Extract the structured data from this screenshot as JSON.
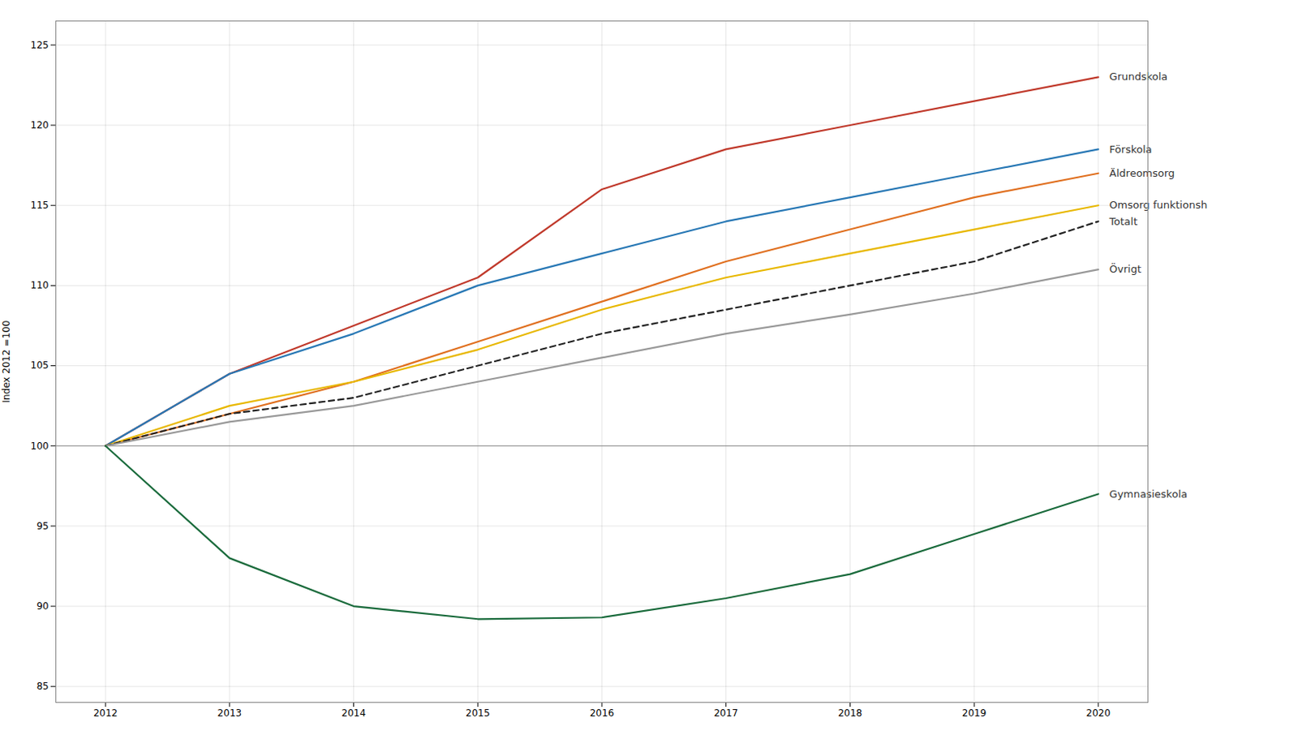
{
  "chart_data": {
    "type": "line",
    "y_label": "Index 2012 =100",
    "x": [
      2012,
      2013,
      2014,
      2015,
      2016,
      2017,
      2018,
      2019,
      2020
    ],
    "series": [
      {
        "name": "Grundskola",
        "color": "#c0392b",
        "line_style": "solid",
        "values": [
          100,
          104.5,
          107.5,
          110.5,
          116.0,
          118.5,
          120.0,
          121.5,
          123.0
        ]
      },
      {
        "name": "Förskola",
        "color": "#2878b5",
        "line_style": "solid",
        "values": [
          100,
          104.5,
          107.0,
          110.0,
          112.0,
          114.0,
          115.5,
          117.0,
          118.5
        ]
      },
      {
        "name": "Äldreomsorg",
        "color": "#e07020",
        "line_style": "solid",
        "values": [
          100,
          102.0,
          104.0,
          106.5,
          109.0,
          111.5,
          113.5,
          115.5,
          117.0
        ]
      },
      {
        "name": "Omsorg funktionsh",
        "color": "#e8b800",
        "line_style": "solid",
        "values": [
          100,
          102.5,
          104.0,
          106.0,
          108.5,
          110.5,
          112.0,
          113.5,
          115.0
        ]
      },
      {
        "name": "Totalt",
        "color": "#222222",
        "line_style": "dashed",
        "values": [
          100,
          102.0,
          103.0,
          105.0,
          107.0,
          108.5,
          110.0,
          111.5,
          114.0
        ]
      },
      {
        "name": "Övrigt",
        "color": "#999999",
        "line_style": "solid",
        "values": [
          100,
          101.5,
          102.5,
          104.0,
          105.5,
          107.0,
          108.2,
          109.5,
          111.0
        ]
      },
      {
        "name": "Gymnasieskola",
        "color": "#1a6b3c",
        "line_style": "solid",
        "values": [
          100,
          93.0,
          90.0,
          89.2,
          89.3,
          90.5,
          92.0,
          94.5,
          97.0
        ]
      }
    ],
    "hline": {
      "y": 100,
      "color": "#888888"
    },
    "ylim": [
      84,
      126.5
    ],
    "yticks": [
      85,
      90,
      95,
      100,
      105,
      110,
      115,
      120,
      125
    ],
    "xlim": [
      2011.6,
      2020.4
    ],
    "xticks": [
      2012,
      2013,
      2014,
      2015,
      2016,
      2017,
      2018,
      2019,
      2020
    ],
    "grid": true
  }
}
